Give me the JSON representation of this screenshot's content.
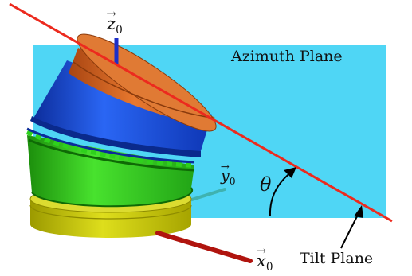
{
  "labels": {
    "azimuth_plane": "Azimuth Plane",
    "tilt_plane": "Tilt Plane",
    "theta": "θ",
    "z_axis": {
      "letter": "z",
      "sub": "0"
    },
    "y_axis": {
      "letter": "y",
      "sub": "0"
    },
    "x_axis": {
      "letter": "x",
      "sub": "0"
    }
  },
  "colors": {
    "azimuth_plane": "#4fd6f5",
    "tilt_line": "#ec2a1e",
    "z_axis": "#1c2ec8",
    "y_axis": "#3fb2b0",
    "x_axis": "#b0140e",
    "top_cylinder": "#dc6a28",
    "middle_cylinder": "#1e56e6",
    "green_cylinder": "#2ed11c",
    "yellow_base": "#cccc0a"
  }
}
